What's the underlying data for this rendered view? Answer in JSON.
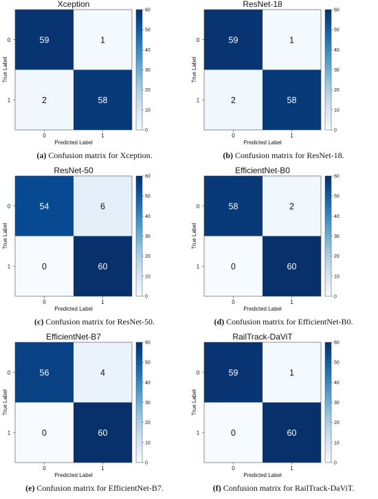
{
  "chart_data": [
    {
      "type": "heatmap",
      "title": "Xception",
      "xlabel": "Predicted Label",
      "ylabel": "True Label",
      "x_ticks": [
        "0",
        "1"
      ],
      "y_ticks": [
        "0",
        "1"
      ],
      "values": [
        [
          59,
          1
        ],
        [
          2,
          58
        ]
      ],
      "colorbar": {
        "min": 0,
        "max": 60,
        "ticks": [
          0,
          10,
          20,
          30,
          40,
          50,
          60
        ]
      },
      "caption": {
        "tag": "(a)",
        "text": " Confusion matrix for Xception."
      }
    },
    {
      "type": "heatmap",
      "title": "ResNet-18",
      "xlabel": "Predicted Label",
      "ylabel": "True Label",
      "x_ticks": [
        "0",
        "1"
      ],
      "y_ticks": [
        "0",
        "1"
      ],
      "values": [
        [
          59,
          1
        ],
        [
          2,
          58
        ]
      ],
      "colorbar": {
        "min": 0,
        "max": 60,
        "ticks": [
          0,
          10,
          20,
          30,
          40,
          50,
          60
        ]
      },
      "caption": {
        "tag": "(b)",
        "text": " Confusion matrix for ResNet-18."
      }
    },
    {
      "type": "heatmap",
      "title": "ResNet-50",
      "xlabel": "Predicted Label",
      "ylabel": "True Label",
      "x_ticks": [
        "0",
        "1"
      ],
      "y_ticks": [
        "0",
        "1"
      ],
      "values": [
        [
          54,
          6
        ],
        [
          0,
          60
        ]
      ],
      "colorbar": {
        "min": 0,
        "max": 60,
        "ticks": [
          0,
          10,
          20,
          30,
          40,
          50,
          60
        ]
      },
      "caption": {
        "tag": "(c)",
        "text": " Confusion matrix for ResNet-50."
      }
    },
    {
      "type": "heatmap",
      "title": "EfficientNet-B0",
      "xlabel": "Predicted Label",
      "ylabel": "True Label",
      "x_ticks": [
        "0",
        "1"
      ],
      "y_ticks": [
        "0",
        "1"
      ],
      "values": [
        [
          58,
          2
        ],
        [
          0,
          60
        ]
      ],
      "colorbar": {
        "min": 0,
        "max": 60,
        "ticks": [
          0,
          10,
          20,
          30,
          40,
          50,
          60
        ]
      },
      "caption": {
        "tag": "(d)",
        "text": " Confusion matrix for EfficientNet-B0."
      }
    },
    {
      "type": "heatmap",
      "title": "EfficientNet-B7",
      "xlabel": "Predicted Label",
      "ylabel": "True Label",
      "x_ticks": [
        "0",
        "1"
      ],
      "y_ticks": [
        "0",
        "1"
      ],
      "values": [
        [
          56,
          4
        ],
        [
          0,
          60
        ]
      ],
      "colorbar": {
        "min": 0,
        "max": 60,
        "ticks": [
          0,
          10,
          20,
          30,
          40,
          50,
          60
        ]
      },
      "caption": {
        "tag": "(e)",
        "text": " Confusion matrix for EfficientNet-B7."
      }
    },
    {
      "type": "heatmap",
      "title": "RailTrack-DaViT",
      "xlabel": "Predicted Label",
      "ylabel": "True Label",
      "x_ticks": [
        "0",
        "1"
      ],
      "y_ticks": [
        "0",
        "1"
      ],
      "values": [
        [
          59,
          1
        ],
        [
          0,
          60
        ]
      ],
      "colorbar": {
        "min": 0,
        "max": 60,
        "ticks": [
          0,
          10,
          20,
          30,
          40,
          50,
          60
        ]
      },
      "caption": {
        "tag": "(f)",
        "text": " Confusion matrix for RailTrack-DaViT."
      }
    }
  ]
}
